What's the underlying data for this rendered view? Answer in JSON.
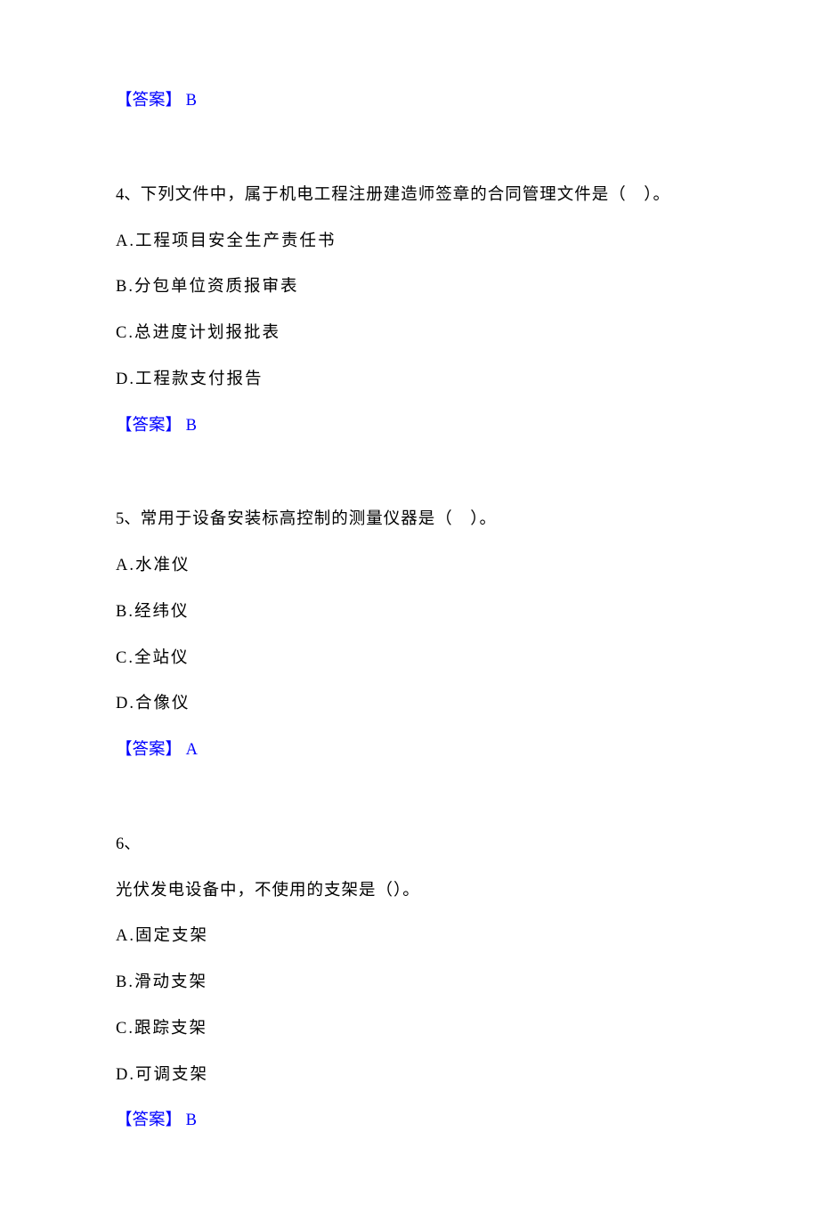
{
  "colors": {
    "text": "#000000",
    "answer": "#0000ff",
    "background": "#ffffff"
  },
  "typography": {
    "font_family": "SimSun",
    "font_size_pt": 14,
    "line_spacing": 1.5
  },
  "answer_label": "【答案】",
  "blocks": [
    {
      "type": "answer",
      "value": "B"
    },
    {
      "type": "question",
      "number": "4、",
      "stem": "下列文件中，属于机电工程注册建造师签章的合同管理文件是（　）。",
      "options": [
        {
          "label": "A.",
          "text": "工程项目安全生产责任书"
        },
        {
          "label": "B.",
          "text": "分包单位资质报审表"
        },
        {
          "label": "C.",
          "text": "总进度计划报批表"
        },
        {
          "label": "D.",
          "text": "工程款支付报告"
        }
      ],
      "answer": "B"
    },
    {
      "type": "question",
      "number": "5、",
      "stem": "常用于设备安装标高控制的测量仪器是（　）。",
      "options": [
        {
          "label": "A.",
          "text": "水准仪"
        },
        {
          "label": "B.",
          "text": "经纬仪"
        },
        {
          "label": "C.",
          "text": "全站仪"
        },
        {
          "label": "D.",
          "text": "合像仪"
        }
      ],
      "answer": "A"
    },
    {
      "type": "question",
      "number": "6、",
      "stem": "",
      "sub_stem": "光伏发电设备中，不使用的支架是（）。",
      "options": [
        {
          "label": "A.",
          "text": "固定支架"
        },
        {
          "label": "B.",
          "text": "滑动支架"
        },
        {
          "label": "C.",
          "text": "跟踪支架"
        },
        {
          "label": "D.",
          "text": "可调支架"
        }
      ],
      "answer": "B"
    }
  ]
}
